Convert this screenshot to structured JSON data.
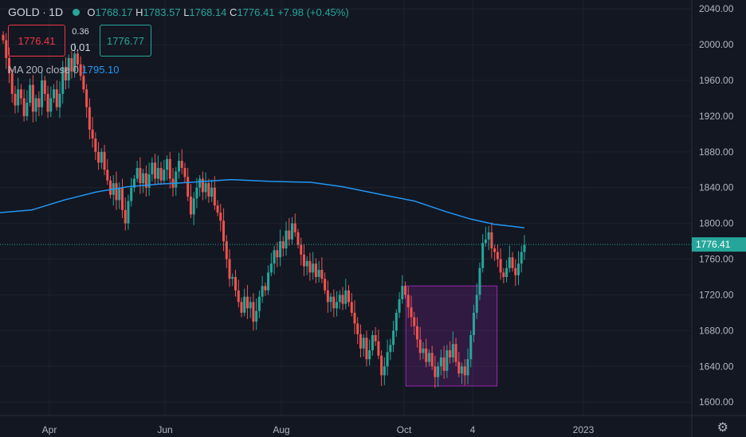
{
  "header": {
    "symbol": "GOLD",
    "interval": "1D",
    "open_label": "O",
    "open": "1768.17",
    "high_label": "H",
    "high": "1783.57",
    "low_label": "L",
    "low": "1768.14",
    "close_label": "C",
    "close": "1776.41",
    "change": "+7.98 (+0.45%)"
  },
  "trade": {
    "sell": "1776.41",
    "buy": "1776.77",
    "spread_top": "0.36",
    "spread_bottom": "0.01"
  },
  "indicator": {
    "label": "MA 200 close 0",
    "value": "1795.10"
  },
  "last_price_label": "1776.41",
  "settings_icon": "gear-icon",
  "colors": {
    "bg": "#131722",
    "up": "#26a69a",
    "down": "#ef5350",
    "ma": "#2196f3",
    "rect": "#9c27b0",
    "grid": "#1e222d"
  },
  "chart_data": {
    "type": "candlestick",
    "ylim": [
      1585,
      2050
    ],
    "y_ticks": [
      "2040.00",
      "2000.00",
      "1960.00",
      "1920.00",
      "1880.00",
      "1840.00",
      "1800.00",
      "1760.00",
      "1720.00",
      "1680.00",
      "1640.00",
      "1600.00"
    ],
    "x_ticks": [
      "Apr",
      "Jun",
      "Aug",
      "Oct",
      "4",
      "2023"
    ],
    "last_price": 1776.41,
    "ma200": [
      [
        0,
        1812
      ],
      [
        40,
        1815
      ],
      [
        80,
        1826
      ],
      [
        120,
        1835
      ],
      [
        160,
        1841
      ],
      [
        200,
        1844
      ],
      [
        240,
        1846
      ],
      [
        290,
        1849
      ],
      [
        340,
        1847
      ],
      [
        390,
        1846
      ],
      [
        430,
        1841
      ],
      [
        480,
        1832
      ],
      [
        520,
        1825
      ],
      [
        560,
        1813
      ],
      [
        590,
        1805
      ],
      [
        620,
        1799
      ],
      [
        640,
        1797
      ],
      [
        658,
        1795
      ]
    ],
    "zone": {
      "y_top": 1730,
      "y_bottom": 1618
    },
    "closes": [
      2005,
      1985,
      1968,
      1945,
      1932,
      1950,
      1940,
      1920,
      1935,
      1955,
      1925,
      1940,
      1930,
      1960,
      1945,
      1925,
      1940,
      1950,
      1930,
      1945,
      1975,
      1960,
      1985,
      1970,
      1990,
      1978,
      1965,
      1950,
      1930,
      1905,
      1895,
      1880,
      1868,
      1880,
      1860,
      1848,
      1832,
      1845,
      1826,
      1840,
      1815,
      1800,
      1825,
      1840,
      1850,
      1862,
      1845,
      1856,
      1840,
      1855,
      1868,
      1850,
      1862,
      1848,
      1860,
      1872,
      1850,
      1840,
      1858,
      1870,
      1862,
      1852,
      1830,
      1810,
      1828,
      1840,
      1850,
      1835,
      1845,
      1830,
      1840,
      1820,
      1812,
      1803,
      1780,
      1760,
      1738,
      1740,
      1725,
      1712,
      1700,
      1718,
      1705,
      1712,
      1690,
      1702,
      1718,
      1730,
      1725,
      1745,
      1755,
      1770,
      1762,
      1780,
      1772,
      1792,
      1782,
      1800,
      1790,
      1776,
      1765,
      1752,
      1758,
      1745,
      1755,
      1740,
      1748,
      1738,
      1725,
      1712,
      1718,
      1705,
      1712,
      1720,
      1710,
      1725,
      1712,
      1700,
      1688,
      1676,
      1660,
      1672,
      1648,
      1658,
      1675,
      1668,
      1652,
      1630,
      1640,
      1656,
      1664,
      1680,
      1700,
      1715,
      1730,
      1720,
      1706,
      1695,
      1685,
      1670,
      1655,
      1660,
      1645,
      1655,
      1640,
      1628,
      1640,
      1650,
      1635,
      1658,
      1650,
      1665,
      1645,
      1632,
      1640,
      1630,
      1648,
      1675,
      1700,
      1720,
      1750,
      1778,
      1782,
      1790,
      1772,
      1768,
      1760,
      1745,
      1740,
      1750,
      1762,
      1750,
      1742,
      1755,
      1768,
      1776
    ]
  }
}
